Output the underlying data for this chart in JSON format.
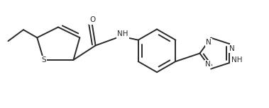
{
  "bg_color": "#ffffff",
  "line_color": "#2a2a2a",
  "text_color": "#2a2a2a",
  "bond_lw": 1.4,
  "figsize": [
    3.79,
    1.53
  ],
  "dpi": 100,
  "xlim": [
    0,
    10
  ],
  "ylim": [
    0,
    4.05
  ]
}
